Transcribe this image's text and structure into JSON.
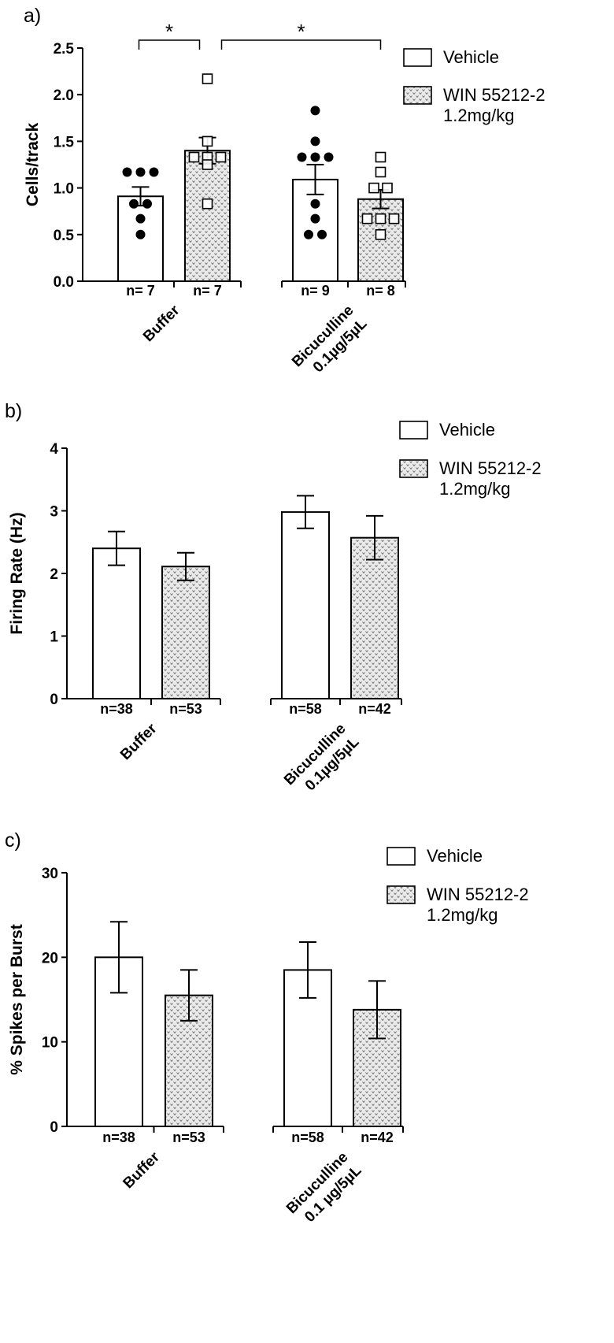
{
  "colors": {
    "ink": "#000000",
    "vehicle_fill": "#ffffff",
    "win_fill": "#e6e6e6"
  },
  "chart_data": [
    {
      "type": "bar",
      "panel": "a)",
      "ylabel": "Cells/track",
      "ylim": [
        0,
        2.5
      ],
      "yticks": [
        "0.0",
        "0.5",
        "1.0",
        "1.5",
        "2.0",
        "2.5"
      ],
      "groups": [
        {
          "label": "Buffer",
          "label_lines": [
            "Buffer"
          ]
        },
        {
          "label": "Bicuculline 0.1µg/5µL",
          "label_lines": [
            "Bicuculline",
            "0.1µg/5µL"
          ]
        }
      ],
      "series": [
        {
          "name": "Vehicle",
          "pattern": "open",
          "values": [
            0.91,
            1.09
          ],
          "sem": [
            0.1,
            0.16
          ],
          "n": [
            "n= 7",
            "n= 9"
          ],
          "points": [
            [
              1.17,
              1.17,
              1.17,
              0.83,
              0.83,
              0.67,
              0.5
            ],
            [
              1.83,
              1.5,
              1.33,
              1.33,
              1.33,
              0.83,
              0.67,
              0.5,
              0.5
            ]
          ]
        },
        {
          "name": "WIN 55212-2 1.2mg/kg",
          "name_lines": [
            "WIN 55212-2",
            "1.2mg/kg"
          ],
          "pattern": "dotted",
          "values": [
            1.4,
            0.88
          ],
          "sem": [
            0.14,
            0.1
          ],
          "n": [
            "n= 7",
            "n= 8"
          ],
          "points": [
            [
              2.17,
              1.5,
              1.33,
              1.33,
              1.33,
              1.25,
              0.83
            ],
            [
              1.33,
              1.17,
              1.0,
              1.0,
              0.67,
              0.67,
              0.67,
              0.5
            ]
          ]
        }
      ],
      "significance": [
        {
          "label": "*",
          "from": [
            0,
            0
          ],
          "to": [
            0,
            1
          ]
        },
        {
          "label": "*",
          "from": [
            0,
            1
          ],
          "to": [
            1,
            1
          ]
        }
      ]
    },
    {
      "type": "bar",
      "panel": "b)",
      "ylabel": "Firing Rate (Hz)",
      "ylim": [
        0,
        4
      ],
      "yticks": [
        "0",
        "1",
        "2",
        "3",
        "4"
      ],
      "groups": [
        {
          "label": "Buffer",
          "label_lines": [
            "Buffer"
          ]
        },
        {
          "label": "Bicuculline 0.1µg/5µL",
          "label_lines": [
            "Bicuculline",
            "0.1µg/5µL"
          ]
        }
      ],
      "series": [
        {
          "name": "Vehicle",
          "pattern": "open",
          "values": [
            2.4,
            2.98
          ],
          "sem": [
            0.27,
            0.26
          ],
          "n": [
            "n=38",
            "n=58"
          ]
        },
        {
          "name": "WIN 55212-2 1.2mg/kg",
          "name_lines": [
            "WIN 55212-2",
            "1.2mg/kg"
          ],
          "pattern": "dotted",
          "values": [
            2.11,
            2.57
          ],
          "sem": [
            0.22,
            0.35
          ],
          "n": [
            "n=53",
            "n=42"
          ]
        }
      ]
    },
    {
      "type": "bar",
      "panel": "c)",
      "ylabel": "% Spikes per Burst",
      "ylim": [
        0,
        30
      ],
      "yticks": [
        "0",
        "10",
        "20",
        "30"
      ],
      "groups": [
        {
          "label": "Buffer",
          "label_lines": [
            "Buffer"
          ]
        },
        {
          "label": "Bicuculline 0.1 µg/5µL",
          "label_lines": [
            "Bicuculline",
            "0.1 µg/5µL"
          ]
        }
      ],
      "series": [
        {
          "name": "Vehicle",
          "pattern": "open",
          "values": [
            20.0,
            18.5
          ],
          "sem": [
            4.2,
            3.3
          ],
          "n": [
            "n=38",
            "n=58"
          ]
        },
        {
          "name": "WIN 55212-2 1.2mg/kg",
          "name_lines": [
            "WIN 55212-2",
            "1.2mg/kg"
          ],
          "pattern": "dotted",
          "values": [
            15.5,
            13.8
          ],
          "sem": [
            3.0,
            3.4
          ],
          "n": [
            "n=53",
            "n=42"
          ]
        }
      ]
    }
  ]
}
